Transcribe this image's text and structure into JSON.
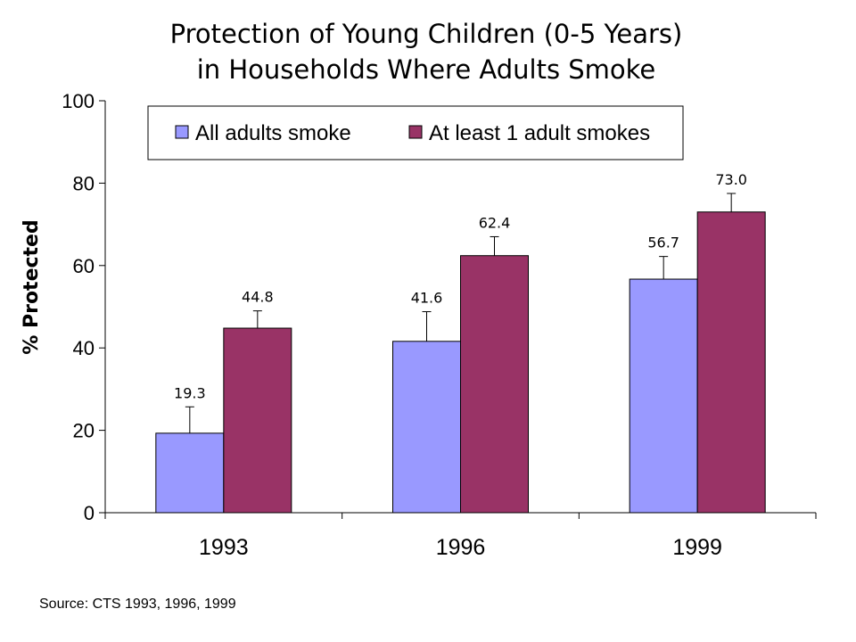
{
  "chart_data": {
    "type": "bar",
    "title_lines": [
      "Protection of Young Children (0-5 Years)",
      "in Households Where Adults Smoke"
    ],
    "ylabel": "% Protected",
    "xlabel": "",
    "categories": [
      "1993",
      "1996",
      "1999"
    ],
    "ylim": [
      0,
      100
    ],
    "yticks": [
      0,
      20,
      40,
      60,
      80,
      100
    ],
    "grid": false,
    "legend_position": "top",
    "series": [
      {
        "name": "All adults smoke",
        "values": [
          19.3,
          41.6,
          56.7
        ],
        "labels": [
          "19.3",
          "41.6",
          "56.7"
        ],
        "error_upper": [
          25.7,
          48.8,
          62.2
        ],
        "color": "#9999ff"
      },
      {
        "name": "At least 1 adult smokes",
        "values": [
          44.8,
          62.4,
          73.0
        ],
        "labels": [
          "44.8",
          "62.4",
          "73.0"
        ],
        "error_upper": [
          49.0,
          67.0,
          77.5
        ],
        "color": "#993366"
      }
    ]
  },
  "footer": {
    "source": "Source:  CTS 1993, 1996, 1999"
  }
}
